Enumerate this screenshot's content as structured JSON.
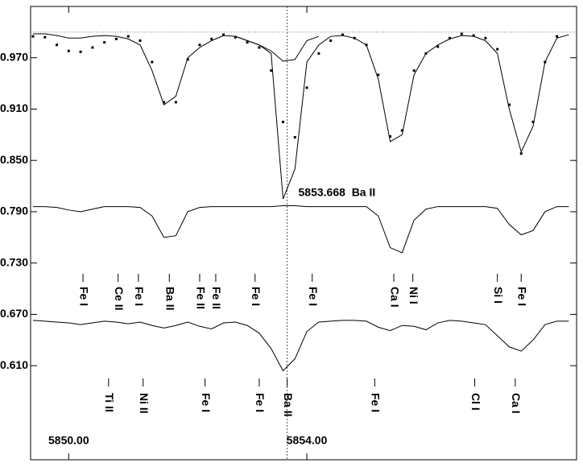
{
  "chart_data": {
    "type": "spectrum",
    "annotation": "5853.668  Ba II",
    "vline": 5853.668,
    "hline": 1.0,
    "xlim": [
      5849.36,
      5858.53
    ],
    "ylim": [
      0.5,
      1.03
    ],
    "xticks": [
      {
        "value": 5850,
        "label": "5850.00"
      },
      {
        "value": 5854,
        "label": "5854.00"
      }
    ],
    "yticks": [
      {
        "value": 0.97,
        "label": "0.970"
      },
      {
        "value": 0.91,
        "label": "0.910"
      },
      {
        "value": 0.85,
        "label": "0.850"
      },
      {
        "value": 0.79,
        "label": "0.790"
      },
      {
        "value": 0.73,
        "label": "0.730"
      },
      {
        "value": 0.67,
        "label": "0.670"
      },
      {
        "value": 0.61,
        "label": "0.610"
      }
    ],
    "x": [
      5849.4,
      5849.6,
      5849.8,
      5850.0,
      5850.2,
      5850.4,
      5850.6,
      5850.8,
      5851.0,
      5851.2,
      5851.4,
      5851.6,
      5851.8,
      5852.0,
      5852.2,
      5852.4,
      5852.6,
      5852.8,
      5853.0,
      5853.2,
      5853.4,
      5853.6,
      5853.8,
      5854.0,
      5854.2,
      5854.4,
      5854.6,
      5854.8,
      5855.0,
      5855.2,
      5855.4,
      5855.6,
      5855.8,
      5856.0,
      5856.2,
      5856.4,
      5856.6,
      5856.8,
      5857.0,
      5857.2,
      5857.4,
      5857.6,
      5857.8,
      5858.0,
      5858.2,
      5858.4
    ],
    "series": [
      {
        "mode": "markers",
        "color": "#000000",
        "values": [
          0.995,
          0.994,
          0.985,
          0.978,
          0.977,
          0.982,
          0.988,
          0.992,
          0.995,
          0.99,
          0.965,
          0.918,
          0.918,
          0.968,
          0.985,
          0.992,
          0.997,
          0.994,
          0.988,
          0.982,
          0.955,
          0.895,
          0.877,
          0.935,
          0.975,
          0.99,
          0.997,
          0.993,
          0.985,
          0.95,
          0.878,
          0.885,
          0.955,
          0.975,
          0.983,
          0.993,
          0.998,
          0.996,
          0.993,
          0.98,
          0.915,
          0.858,
          0.895,
          0.965,
          0.995,
          null
        ]
      },
      {
        "mode": "line",
        "color": "#000000",
        "values": [
          0.998,
          0.998,
          0.996,
          0.993,
          0.993,
          0.995,
          0.996,
          0.995,
          0.992,
          0.985,
          0.955,
          0.915,
          0.925,
          0.97,
          0.982,
          0.99,
          0.996,
          0.995,
          0.99,
          0.985,
          0.975,
          0.805,
          0.84,
          0.965,
          0.985,
          0.995,
          0.996,
          0.993,
          0.985,
          0.945,
          0.872,
          0.88,
          0.95,
          0.975,
          0.985,
          0.992,
          0.996,
          0.995,
          0.99,
          0.975,
          0.91,
          0.86,
          0.89,
          0.965,
          0.993,
          0.997
        ]
      },
      {
        "mode": "line",
        "color": "#000000",
        "values": [
          null,
          null,
          null,
          null,
          null,
          null,
          null,
          null,
          null,
          null,
          null,
          null,
          null,
          null,
          null,
          null,
          null,
          0.995,
          0.99,
          0.985,
          0.978,
          0.966,
          0.968,
          0.99,
          0.995,
          null,
          null,
          null,
          null,
          null,
          null,
          null,
          null,
          null,
          null,
          null,
          null,
          null,
          null,
          null,
          null,
          null,
          null,
          null,
          null,
          null
        ]
      },
      {
        "mode": "line",
        "color": "#000000",
        "values": [
          0.796,
          0.796,
          0.795,
          0.792,
          0.79,
          0.793,
          0.796,
          0.796,
          0.796,
          0.795,
          0.785,
          0.76,
          0.762,
          0.79,
          0.795,
          0.796,
          0.796,
          0.796,
          0.796,
          0.796,
          0.796,
          0.797,
          0.797,
          0.796,
          0.796,
          0.796,
          0.796,
          0.796,
          0.796,
          0.785,
          0.748,
          0.742,
          0.78,
          0.793,
          0.796,
          0.796,
          0.796,
          0.796,
          0.796,
          0.794,
          0.775,
          0.763,
          0.768,
          0.79,
          0.796,
          0.796
        ]
      },
      {
        "mode": "line",
        "color": "#000000",
        "values": [
          0.663,
          0.662,
          0.661,
          0.66,
          0.658,
          0.66,
          0.662,
          0.661,
          0.659,
          0.661,
          0.657,
          0.654,
          0.657,
          0.661,
          0.656,
          0.653,
          0.66,
          0.661,
          0.657,
          0.648,
          0.63,
          0.604,
          0.618,
          0.65,
          0.661,
          0.662,
          0.663,
          0.663,
          0.662,
          0.655,
          0.651,
          0.657,
          0.656,
          0.652,
          0.66,
          0.663,
          0.662,
          0.66,
          0.658,
          0.645,
          0.632,
          0.627,
          0.64,
          0.658,
          0.662,
          0.662
        ]
      }
    ],
    "line_ids": {
      "upper": [
        {
          "label": "Fe I",
          "x": 5850.24
        },
        {
          "label": "Ce II",
          "x": 5850.83
        },
        {
          "label": "Fe I",
          "x": 5851.17
        },
        {
          "label": "Ba II",
          "x": 5851.69
        },
        {
          "label": "Fe II",
          "x": 5852.2
        },
        {
          "label": "Fe II",
          "x": 5852.47
        },
        {
          "label": "Fe I",
          "x": 5853.13
        },
        {
          "label": "Fe I",
          "x": 5854.09
        },
        {
          "label": "Ca I",
          "x": 5855.46
        },
        {
          "label": "Ni I",
          "x": 5855.78
        },
        {
          "label": "Si I",
          "x": 5857.2
        },
        {
          "label": "Fe I",
          "x": 5857.6
        }
      ],
      "lower": [
        {
          "label": "Ti II",
          "x": 5850.67
        },
        {
          "label": "Ni II",
          "x": 5851.25
        },
        {
          "label": "Fe I",
          "x": 5852.29
        },
        {
          "label": "Fe I",
          "x": 5853.2
        },
        {
          "label": "Ba II",
          "x": 5853.67
        },
        {
          "label": "Fe I",
          "x": 5855.14
        },
        {
          "label": "Cl I",
          "x": 5856.82
        },
        {
          "label": "Ca I",
          "x": 5857.5
        }
      ]
    }
  }
}
